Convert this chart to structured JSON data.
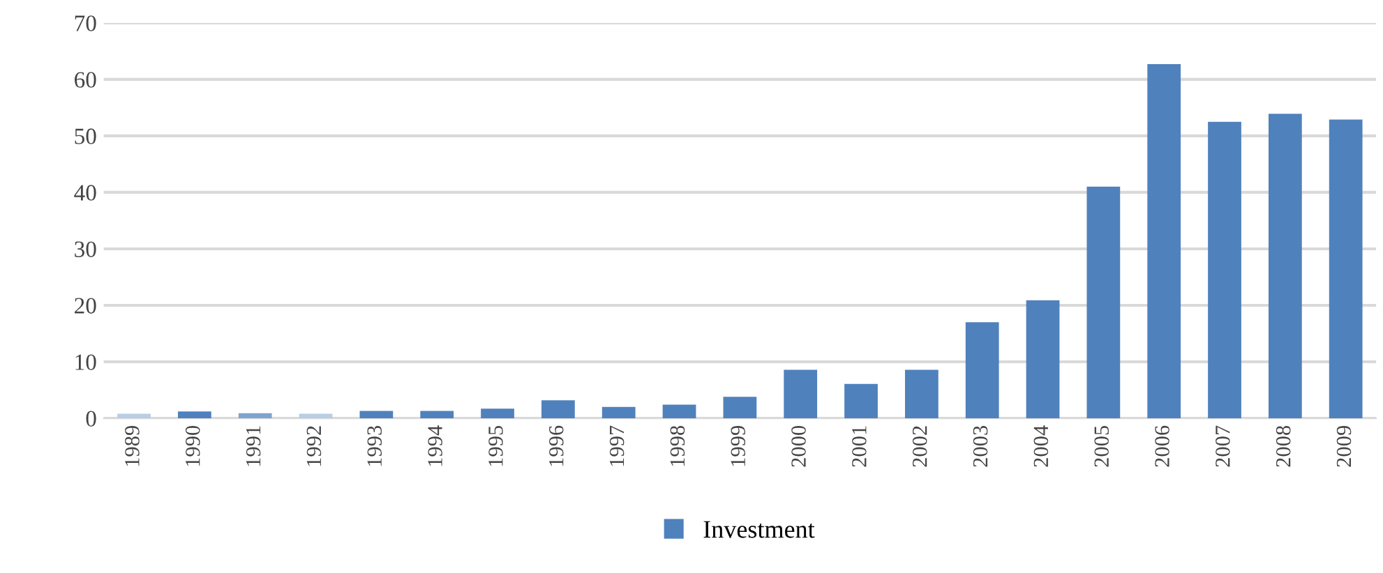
{
  "chart_data": {
    "type": "bar",
    "categories": [
      "1989",
      "1990",
      "1991",
      "1992",
      "1993",
      "1994",
      "1995",
      "1996",
      "1997",
      "1998",
      "1999",
      "2000",
      "2001",
      "2002",
      "2003",
      "2004",
      "2005",
      "2006",
      "2007",
      "2008",
      "2009"
    ],
    "series": [
      {
        "name": "Investment",
        "color": "#4f81bd",
        "colors": [
          "#b9cde5",
          "#4f81bd",
          "#7fa3d0",
          "#b9cde5",
          "#4f81bd",
          "#4f81bd",
          "#4f81bd",
          "#4f81bd",
          "#4f81bd",
          "#4f81bd",
          "#4f81bd",
          "#4f81bd",
          "#4f81bd",
          "#4f81bd",
          "#4f81bd",
          "#4f81bd",
          "#4f81bd",
          "#4f81bd",
          "#4f81bd",
          "#4f81bd",
          "#4f81bd"
        ],
        "values": [
          0.8,
          1.2,
          0.9,
          0.8,
          1.3,
          1.3,
          1.7,
          3.2,
          2.0,
          2.4,
          3.8,
          8.6,
          6.1,
          8.6,
          17.0,
          20.9,
          41.0,
          62.7,
          52.5,
          53.9,
          52.9
        ]
      }
    ],
    "ylim": [
      0,
      70
    ],
    "yticks": [
      0,
      10,
      20,
      30,
      40,
      50,
      60,
      70
    ],
    "grid": "y",
    "legend": "bottom"
  }
}
